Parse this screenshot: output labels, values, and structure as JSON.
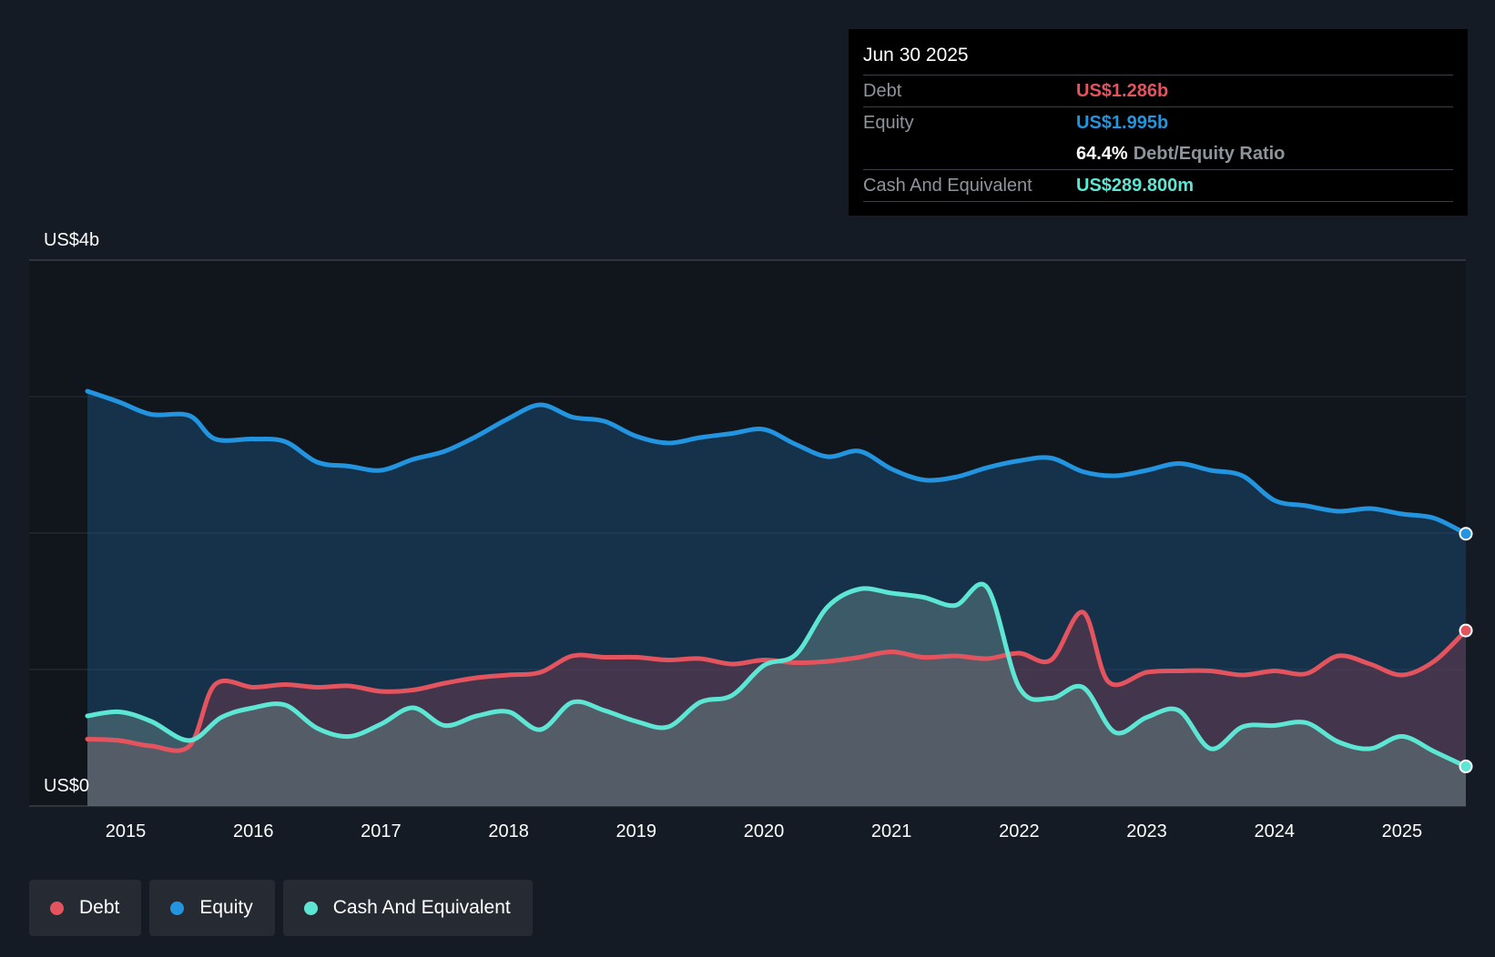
{
  "chart_data": {
    "type": "area",
    "y_top_label": "US$4b",
    "y_bottom_label": "US$0",
    "ylim": [
      0,
      4
    ],
    "xlim": [
      2014.7,
      2025.5
    ],
    "y_grid": [
      1,
      2,
      3,
      4
    ],
    "x_ticks": [
      "2015",
      "2016",
      "2017",
      "2018",
      "2019",
      "2020",
      "2021",
      "2022",
      "2023",
      "2024",
      "2025"
    ],
    "x_tick_values": [
      2015,
      2016,
      2017,
      2018,
      2019,
      2020,
      2021,
      2022,
      2023,
      2024,
      2025
    ],
    "series": [
      {
        "name": "Equity",
        "color": "#2394df",
        "values": [
          [
            2014.7,
            3.04
          ],
          [
            2014.95,
            2.96
          ],
          [
            2015.2,
            2.87
          ],
          [
            2015.5,
            2.86
          ],
          [
            2015.7,
            2.69
          ],
          [
            2016.0,
            2.69
          ],
          [
            2016.25,
            2.67
          ],
          [
            2016.5,
            2.52
          ],
          [
            2016.75,
            2.49
          ],
          [
            2017.0,
            2.46
          ],
          [
            2017.25,
            2.54
          ],
          [
            2017.5,
            2.6
          ],
          [
            2017.75,
            2.71
          ],
          [
            2018.0,
            2.84
          ],
          [
            2018.25,
            2.94
          ],
          [
            2018.5,
            2.85
          ],
          [
            2018.75,
            2.82
          ],
          [
            2019.0,
            2.71
          ],
          [
            2019.25,
            2.66
          ],
          [
            2019.5,
            2.7
          ],
          [
            2019.75,
            2.73
          ],
          [
            2020.0,
            2.76
          ],
          [
            2020.25,
            2.65
          ],
          [
            2020.5,
            2.56
          ],
          [
            2020.75,
            2.6
          ],
          [
            2021.0,
            2.47
          ],
          [
            2021.25,
            2.39
          ],
          [
            2021.5,
            2.41
          ],
          [
            2021.75,
            2.48
          ],
          [
            2022.0,
            2.53
          ],
          [
            2022.25,
            2.55
          ],
          [
            2022.5,
            2.45
          ],
          [
            2022.75,
            2.42
          ],
          [
            2023.0,
            2.46
          ],
          [
            2023.25,
            2.51
          ],
          [
            2023.5,
            2.46
          ],
          [
            2023.75,
            2.42
          ],
          [
            2024.0,
            2.24
          ],
          [
            2024.25,
            2.2
          ],
          [
            2024.5,
            2.16
          ],
          [
            2024.75,
            2.18
          ],
          [
            2025.0,
            2.14
          ],
          [
            2025.25,
            2.11
          ],
          [
            2025.5,
            1.995
          ]
        ]
      },
      {
        "name": "Debt",
        "color": "#e4545f",
        "values": [
          [
            2014.7,
            0.49
          ],
          [
            2014.95,
            0.48
          ],
          [
            2015.2,
            0.44
          ],
          [
            2015.5,
            0.44
          ],
          [
            2015.7,
            0.89
          ],
          [
            2016.0,
            0.87
          ],
          [
            2016.25,
            0.89
          ],
          [
            2016.5,
            0.87
          ],
          [
            2016.75,
            0.88
          ],
          [
            2017.0,
            0.84
          ],
          [
            2017.25,
            0.85
          ],
          [
            2017.5,
            0.9
          ],
          [
            2017.75,
            0.94
          ],
          [
            2018.0,
            0.96
          ],
          [
            2018.25,
            0.98
          ],
          [
            2018.5,
            1.1
          ],
          [
            2018.75,
            1.09
          ],
          [
            2019.0,
            1.09
          ],
          [
            2019.25,
            1.07
          ],
          [
            2019.5,
            1.08
          ],
          [
            2019.75,
            1.04
          ],
          [
            2020.0,
            1.07
          ],
          [
            2020.25,
            1.05
          ],
          [
            2020.5,
            1.06
          ],
          [
            2020.75,
            1.09
          ],
          [
            2021.0,
            1.13
          ],
          [
            2021.25,
            1.09
          ],
          [
            2021.5,
            1.1
          ],
          [
            2021.75,
            1.08
          ],
          [
            2022.0,
            1.12
          ],
          [
            2022.25,
            1.07
          ],
          [
            2022.5,
            1.42
          ],
          [
            2022.7,
            0.91
          ],
          [
            2023.0,
            0.98
          ],
          [
            2023.25,
            0.99
          ],
          [
            2023.5,
            0.99
          ],
          [
            2023.75,
            0.96
          ],
          [
            2024.0,
            0.99
          ],
          [
            2024.25,
            0.97
          ],
          [
            2024.5,
            1.1
          ],
          [
            2024.75,
            1.04
          ],
          [
            2025.0,
            0.96
          ],
          [
            2025.25,
            1.06
          ],
          [
            2025.5,
            1.286
          ]
        ]
      },
      {
        "name": "Cash And Equivalent",
        "color": "#5de6d3",
        "values": [
          [
            2014.7,
            0.66
          ],
          [
            2014.95,
            0.69
          ],
          [
            2015.2,
            0.62
          ],
          [
            2015.5,
            0.48
          ],
          [
            2015.75,
            0.65
          ],
          [
            2016.0,
            0.72
          ],
          [
            2016.25,
            0.74
          ],
          [
            2016.5,
            0.57
          ],
          [
            2016.75,
            0.51
          ],
          [
            2017.0,
            0.6
          ],
          [
            2017.25,
            0.72
          ],
          [
            2017.5,
            0.59
          ],
          [
            2017.75,
            0.66
          ],
          [
            2018.0,
            0.69
          ],
          [
            2018.25,
            0.56
          ],
          [
            2018.5,
            0.76
          ],
          [
            2018.75,
            0.7
          ],
          [
            2019.0,
            0.62
          ],
          [
            2019.25,
            0.58
          ],
          [
            2019.5,
            0.76
          ],
          [
            2019.75,
            0.81
          ],
          [
            2020.0,
            1.03
          ],
          [
            2020.25,
            1.11
          ],
          [
            2020.5,
            1.46
          ],
          [
            2020.75,
            1.59
          ],
          [
            2021.0,
            1.56
          ],
          [
            2021.25,
            1.53
          ],
          [
            2021.5,
            1.47
          ],
          [
            2021.75,
            1.6
          ],
          [
            2022.0,
            0.87
          ],
          [
            2022.25,
            0.79
          ],
          [
            2022.5,
            0.87
          ],
          [
            2022.75,
            0.54
          ],
          [
            2023.0,
            0.65
          ],
          [
            2023.25,
            0.7
          ],
          [
            2023.5,
            0.42
          ],
          [
            2023.75,
            0.58
          ],
          [
            2024.0,
            0.59
          ],
          [
            2024.25,
            0.61
          ],
          [
            2024.5,
            0.47
          ],
          [
            2024.75,
            0.42
          ],
          [
            2025.0,
            0.51
          ],
          [
            2025.25,
            0.4
          ],
          [
            2025.5,
            0.2898
          ]
        ]
      }
    ]
  },
  "tooltip": {
    "date": "Jun 30 2025",
    "debt_label": "Debt",
    "debt_value": "US$1.286b",
    "equity_label": "Equity",
    "equity_value": "US$1.995b",
    "ratio_value": "64.4%",
    "ratio_label": "Debt/Equity Ratio",
    "cash_label": "Cash And Equivalent",
    "cash_value": "US$289.800m"
  },
  "legend": [
    {
      "label": "Debt",
      "color": "#e4545f"
    },
    {
      "label": "Equity",
      "color": "#2394df"
    },
    {
      "label": "Cash And Equivalent",
      "color": "#5de6d3"
    }
  ],
  "colors": {
    "debt": "#e4545f",
    "equity": "#2394df",
    "cash": "#5de6d3"
  }
}
